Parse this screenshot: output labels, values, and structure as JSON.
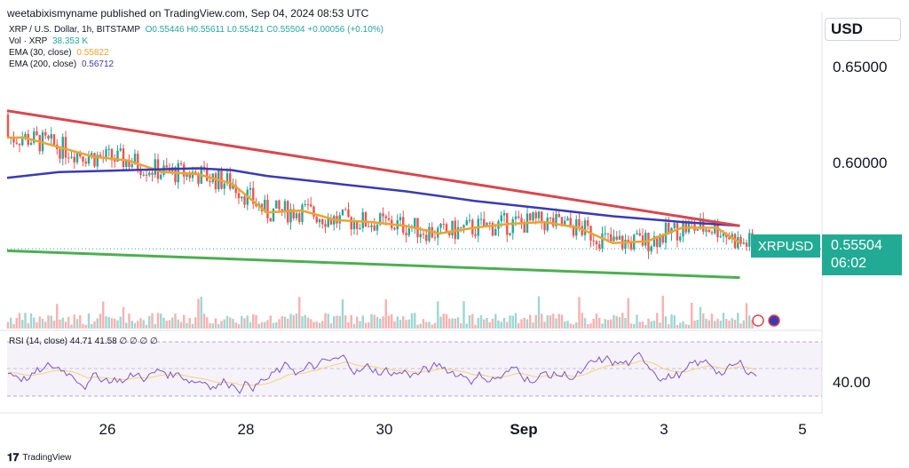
{
  "header": {
    "publisher": "weetabixismyname published on TradingView.com, Sep 04, 2024 08:53 UTC",
    "symbol_line": "XRP / U.S. Dollar, 1h, BITSTAMP",
    "ohlc": "O0.55446 H0.55611 L0.55421 C0.55504 +0.00056 (+0.10%)",
    "vol_label": "Vol · XRP",
    "vol_value": "38.353 K",
    "ema30_label": "EMA (30, close)",
    "ema30_value": "0.55822",
    "ema200_label": "EMA (200, close)",
    "ema200_value": "0.56712"
  },
  "axis": {
    "currency": "USD",
    "price_ticks": [
      "0.65000",
      "0.60000"
    ],
    "rsi_tick": "40.00",
    "date_ticks": [
      "26",
      "28",
      "30",
      "Sep",
      "3",
      "5"
    ]
  },
  "price_tag": {
    "symbol": "XRPUSD",
    "price": "0.55504",
    "countdown": "06:02"
  },
  "rsi_header": "RSI (14, close) 44.71 41.58 ∅ ∅ ∅ ∅",
  "footer": {
    "brand": "TradingView"
  },
  "colors": {
    "up": "#26a69a",
    "down": "#ef5350",
    "ema30": "#f0a22e",
    "ema200": "#3a3ab8",
    "trend_upper": "#d9474d",
    "trend_lower": "#4caf50",
    "rsi": "#7e57c2",
    "rsi_ma": "#f5d27a",
    "tag": "#22ab94"
  },
  "chart_data": {
    "type": "line",
    "title": "XRP / U.S. Dollar, 1h, BITSTAMP",
    "x_labels": [
      "26",
      "28",
      "30",
      "Sep",
      "3",
      "5"
    ],
    "y_ticks": [
      0.65,
      0.6
    ],
    "ylim": [
      0.525,
      0.668
    ],
    "last_price": 0.55504,
    "series": [
      {
        "name": "EMA (30, close)",
        "x": [
          "Aug 24 18:00",
          "Aug 25 00:00",
          "Aug 25 12:00",
          "Aug 26 00:00",
          "Aug 26 12:00",
          "Aug 27 00:00",
          "Aug 27 12:00",
          "Aug 28 00:00",
          "Aug 28 12:00",
          "Aug 29 00:00",
          "Aug 29 12:00",
          "Aug 30 00:00",
          "Aug 30 12:00",
          "Aug 31 00:00",
          "Aug 31 12:00",
          "Sep 1 00:00",
          "Sep 1 12:00",
          "Sep 2 00:00",
          "Sep 2 12:00",
          "Sep 3 00:00",
          "Sep 3 12:00",
          "Sep 4 00:00",
          "Sep 4 08:00"
        ],
        "y": [
          0.613,
          0.613,
          0.608,
          0.603,
          0.601,
          0.595,
          0.594,
          0.589,
          0.574,
          0.575,
          0.57,
          0.569,
          0.567,
          0.563,
          0.566,
          0.568,
          0.569,
          0.566,
          0.558,
          0.559,
          0.566,
          0.566,
          0.558
        ]
      },
      {
        "name": "EMA (200, close)",
        "x": [
          "Aug 24 18:00",
          "Aug 25 12:00",
          "Aug 26 12:00",
          "Aug 27 12:00",
          "Aug 28 00:00",
          "Aug 28 12:00",
          "Aug 29 12:00",
          "Aug 30 12:00",
          "Aug 31 12:00",
          "Sep 1 12:00",
          "Sep 2 12:00",
          "Sep 3 12:00",
          "Sep 4 08:00"
        ],
        "y": [
          0.592,
          0.595,
          0.596,
          0.597,
          0.596,
          0.593,
          0.589,
          0.585,
          0.58,
          0.576,
          0.572,
          0.569,
          0.567
        ]
      },
      {
        "name": "",
        "x": [
          "Aug 24 18:00",
          "Sep 4 08:00"
        ],
        "y": [
          0.627,
          0.567
        ]
      },
      {
        "name": "",
        "x": [
          "Aug 24 18:00",
          "Sep 4 08:00"
        ],
        "y": [
          0.554,
          0.54
        ]
      }
    ]
  }
}
